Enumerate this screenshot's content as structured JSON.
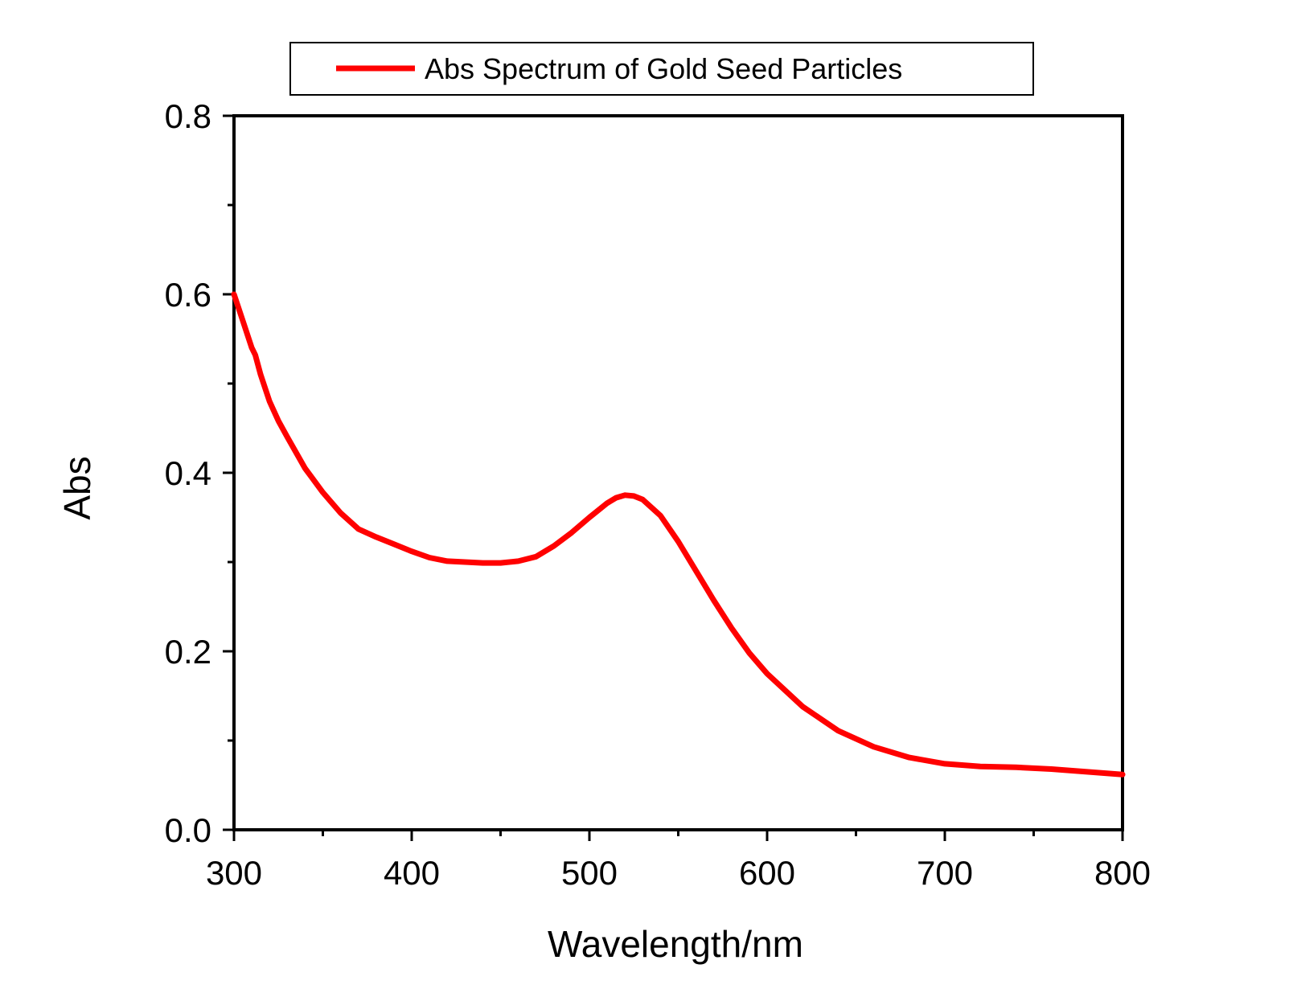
{
  "chart_data": {
    "type": "line",
    "xlabel": "Wavelength/nm",
    "ylabel": "Abs",
    "xlim": [
      300,
      800
    ],
    "ylim": [
      0.0,
      0.8
    ],
    "x_ticks": [
      300,
      400,
      500,
      600,
      700,
      800
    ],
    "x_tick_labels": [
      "300",
      "400",
      "500",
      "600",
      "700",
      "800"
    ],
    "y_ticks": [
      0.0,
      0.2,
      0.4,
      0.6,
      0.8
    ],
    "y_tick_labels": [
      "0.0",
      "0.2",
      "0.4",
      "0.6",
      "0.8"
    ],
    "grid": false,
    "legend_position": "top-center",
    "series": [
      {
        "name": "Abs Spectrum of Gold Seed Particles",
        "color": "#ff0000",
        "x": [
          300,
          305,
          310,
          312,
          315,
          320,
          325,
          330,
          340,
          350,
          360,
          370,
          380,
          390,
          400,
          410,
          420,
          430,
          440,
          450,
          460,
          470,
          480,
          490,
          500,
          510,
          515,
          520,
          525,
          530,
          540,
          550,
          560,
          570,
          580,
          590,
          600,
          620,
          640,
          660,
          680,
          700,
          720,
          740,
          760,
          780,
          800
        ],
        "y": [
          0.6,
          0.57,
          0.54,
          0.532,
          0.51,
          0.48,
          0.458,
          0.44,
          0.405,
          0.378,
          0.355,
          0.337,
          0.328,
          0.32,
          0.312,
          0.305,
          0.301,
          0.3,
          0.299,
          0.299,
          0.301,
          0.306,
          0.318,
          0.333,
          0.35,
          0.366,
          0.372,
          0.375,
          0.374,
          0.37,
          0.352,
          0.323,
          0.29,
          0.257,
          0.226,
          0.198,
          0.175,
          0.138,
          0.111,
          0.093,
          0.081,
          0.074,
          0.071,
          0.07,
          0.068,
          0.065,
          0.062
        ]
      }
    ]
  }
}
